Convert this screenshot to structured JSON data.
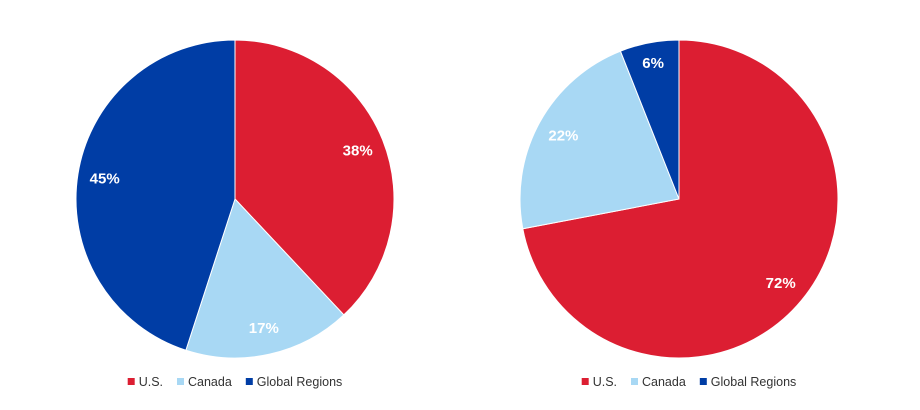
{
  "chart_data": [
    {
      "type": "pie",
      "categories": [
        "U.S.",
        "Canada",
        "Global Regions"
      ],
      "values": [
        38,
        17,
        45
      ],
      "labels": [
        "38%",
        "17%",
        "45%"
      ],
      "colors": [
        "#dc1e32",
        "#a8d8f4",
        "#003da5"
      ],
      "start_angle_deg": 0,
      "direction": "clockwise",
      "legend": "bottom"
    },
    {
      "type": "pie",
      "categories": [
        "U.S.",
        "Canada",
        "Global Regions"
      ],
      "values": [
        72,
        22,
        6
      ],
      "labels": [
        "72%",
        "22%",
        "6%"
      ],
      "colors": [
        "#dc1e32",
        "#a8d8f4",
        "#003da5"
      ],
      "start_angle_deg": 0,
      "direction": "clockwise",
      "legend": "bottom"
    }
  ]
}
